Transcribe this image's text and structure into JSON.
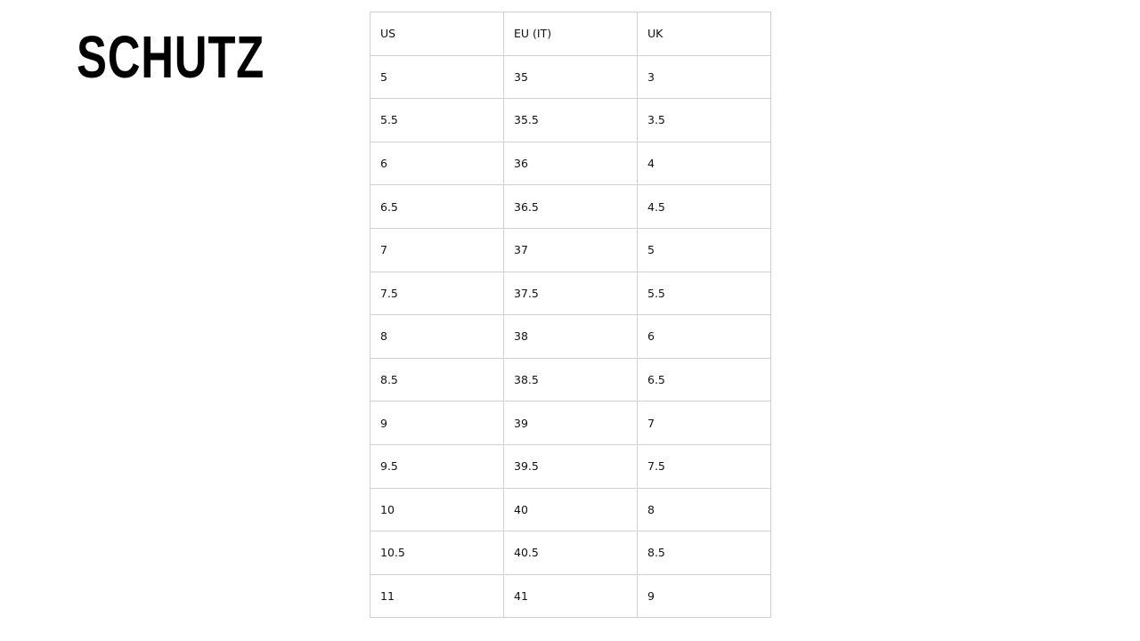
{
  "brand": {
    "logo_text": "SCHUTZ"
  },
  "size_chart": {
    "headers": [
      "US",
      "EU (IT)",
      "UK"
    ],
    "rows": [
      [
        "5",
        "35",
        "3"
      ],
      [
        "5.5",
        "35.5",
        "3.5"
      ],
      [
        "6",
        "36",
        "4"
      ],
      [
        "6.5",
        "36.5",
        "4.5"
      ],
      [
        "7",
        "37",
        "5"
      ],
      [
        "7.5",
        "37.5",
        "5.5"
      ],
      [
        "8",
        "38",
        "6"
      ],
      [
        "8.5",
        "38.5",
        "6.5"
      ],
      [
        "9",
        "39",
        "7"
      ],
      [
        "9.5",
        "39.5",
        "7.5"
      ],
      [
        "10",
        "40",
        "8"
      ],
      [
        "10.5",
        "40.5",
        "8.5"
      ],
      [
        "11",
        "41",
        "9"
      ]
    ]
  }
}
